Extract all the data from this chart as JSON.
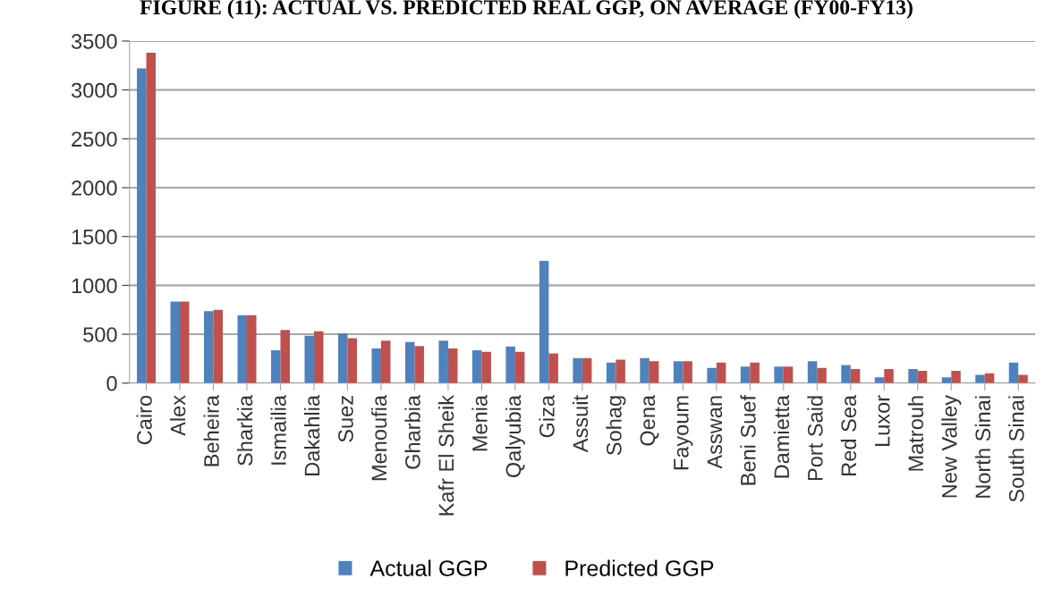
{
  "chart_data": {
    "type": "bar",
    "title": "FIGURE (11): ACTUAL VS. PREDICTED REAL GGP, ON AVERAGE (FY00-FY13)",
    "categories": [
      "Cairo",
      "Alex",
      "Beheira",
      "Sharkia",
      "Ismailia",
      "Dakahlia",
      "Suez",
      "Menoufia",
      "Gharbia",
      "Kafr El Sheik",
      "Menia",
      "Qalyubia",
      "Giza",
      "Assuit",
      "Sohag",
      "Qena",
      "Fayoum",
      "Asswan",
      "Beni Suef",
      "Damietta",
      "Port Said",
      "Red Sea",
      "Luxor",
      "Matrouh",
      "New Valley",
      "North Sinai",
      "South Sinai"
    ],
    "series": [
      {
        "name": "Actual GGP",
        "color": "#4f81bd",
        "values": [
          3220,
          835,
          735,
          695,
          335,
          485,
          510,
          355,
          420,
          435,
          335,
          375,
          1250,
          255,
          210,
          255,
          225,
          155,
          170,
          170,
          225,
          185,
          60,
          145,
          60,
          85,
          210
        ]
      },
      {
        "name": "Predicted GGP",
        "color": "#c0504d",
        "values": [
          3380,
          835,
          750,
          695,
          545,
          530,
          460,
          435,
          380,
          355,
          320,
          320,
          305,
          255,
          240,
          225,
          225,
          210,
          210,
          170,
          155,
          145,
          145,
          125,
          125,
          100,
          85
        ]
      }
    ],
    "ylim": [
      0,
      3500
    ],
    "yticks": [
      0,
      500,
      1000,
      1500,
      2000,
      2500,
      3000,
      3500
    ],
    "grid": "y",
    "legend": "bottom"
  }
}
